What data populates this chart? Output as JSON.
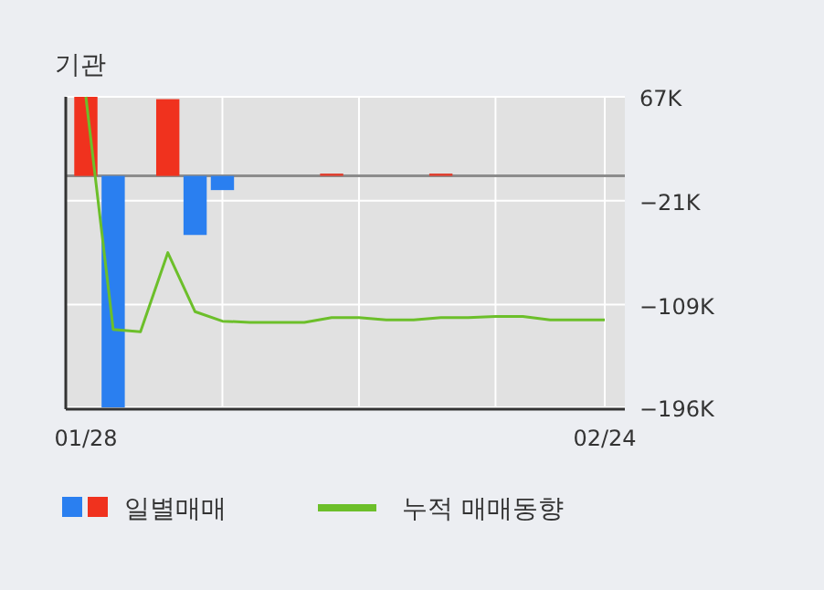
{
  "chart_data": {
    "type": "bar",
    "title": "기관",
    "categories": [
      "01/28",
      null,
      null,
      null,
      null,
      null,
      null,
      null,
      null,
      null,
      null,
      null,
      null,
      null,
      null,
      null,
      null,
      null,
      null,
      "02/24"
    ],
    "series": [
      {
        "name": "일별매매",
        "values": [
          67000,
          -196000,
          0,
          65000,
          -50000,
          -12000,
          0,
          0,
          0,
          2000,
          0,
          0,
          0,
          2000,
          0,
          0,
          0,
          0,
          0,
          0
        ],
        "colors": [
          "#f0321e",
          "#2a7ff0",
          "#f0321e",
          "#f0321e",
          "#2a7ff0",
          "#2a7ff0",
          "#f0321e",
          "#f0321e",
          "#f0321e",
          "#e04030",
          "#f0321e",
          "#f0321e",
          "#f0321e",
          "#e04030",
          "#f0321e",
          "#f0321e",
          "#f0321e",
          "#f0321e",
          "#f0321e",
          "#f0321e"
        ]
      },
      {
        "name": "누적 매매동향",
        "type": "line",
        "color": "#6cbf2a",
        "values": [
          67000,
          -130000,
          -132000,
          -65000,
          -115000,
          -123000,
          -124000,
          -124000,
          -124000,
          -120000,
          -120000,
          -122000,
          -122000,
          -120000,
          -120000,
          -119000,
          -119000,
          -122000,
          -122000,
          -122000
        ]
      }
    ],
    "ylim": [
      -196000,
      67000
    ],
    "yticks": [
      {
        "value": 67000,
        "label": "67K"
      },
      {
        "value": -21000,
        "label": "−21K"
      },
      {
        "value": -109000,
        "label": "−109K"
      },
      {
        "value": -196000,
        "label": "−196K"
      }
    ],
    "ref_lines": [
      {
        "axis": "y",
        "value": 0,
        "color": "#8c8c8c"
      }
    ],
    "grid": true,
    "legend": "bottom"
  }
}
